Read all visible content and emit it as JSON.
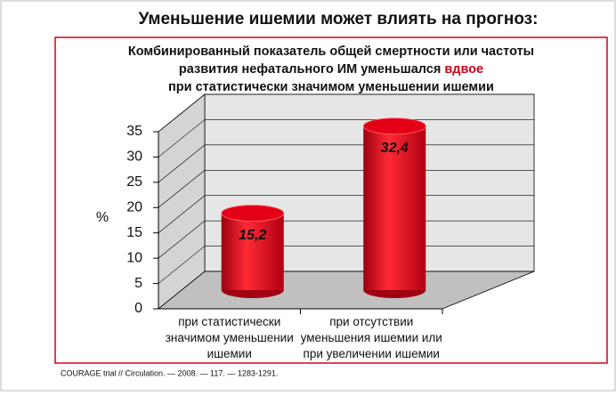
{
  "chart_data": {
    "type": "bar3d",
    "title": "Уменьшение ишемии может влиять на прогноз:",
    "subtitle": {
      "line1": "Комбинированный показатель общей смертности или частоты",
      "line2": "развития нефатального ИМ уменьшался",
      "highlight": "вдвое",
      "line3": "при статистически значимом уменьшении ишемии"
    },
    "y_label": "%",
    "categories": [
      [
        "при статистически",
        "значимом уменьшении",
        "ишемии"
      ],
      [
        "при отсутствии",
        "уменьшения ишемии или",
        "при увеличении ишемии"
      ]
    ],
    "values": [
      15.2,
      32.4
    ],
    "value_labels": [
      "15,2",
      "32,4"
    ],
    "color": "#e30016",
    "ylim": [
      0,
      35
    ],
    "yticks": [
      0,
      5,
      10,
      15,
      20,
      25,
      30,
      35
    ],
    "grid": true,
    "source": "COURAGE trial // Circulation. — 2008. — 117. — 1283-1291."
  }
}
